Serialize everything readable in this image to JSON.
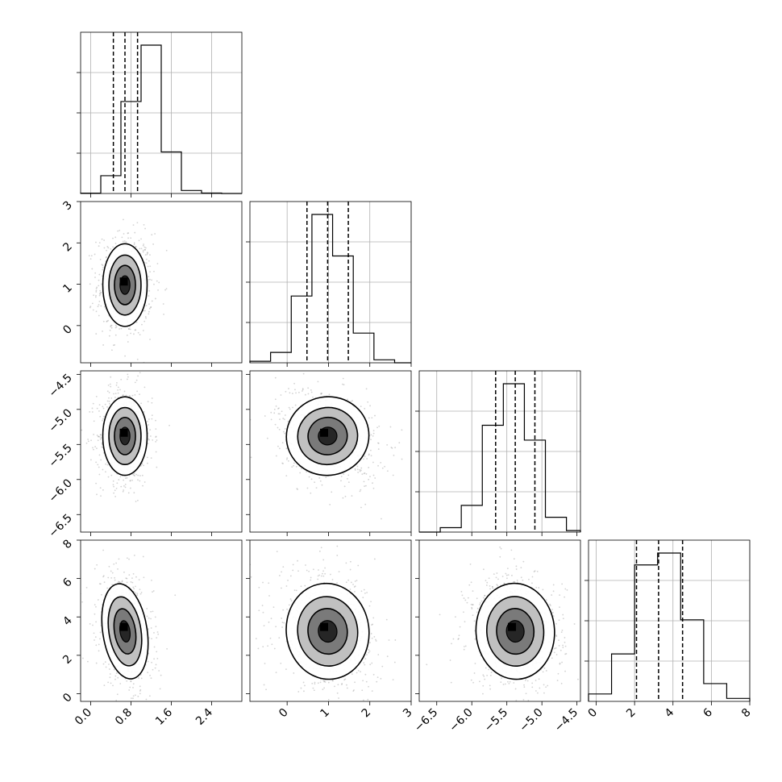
{
  "chart_data": {
    "type": "corner",
    "grid": true,
    "title": "",
    "parameters": [
      {
        "label": "",
        "range": [
          -0.2,
          3.0
        ],
        "ticks": [
          0.0,
          0.8,
          1.6,
          2.4
        ],
        "tick_labels": [
          "0.0",
          "0.8",
          "1.6",
          "2.4"
        ],
        "quantiles": [
          0.45,
          0.68,
          0.93
        ],
        "mode": 0.62,
        "center": 0.68,
        "sd": 0.22
      },
      {
        "label": "",
        "range": [
          -0.9,
          3.0
        ],
        "ticks": [
          0,
          1,
          2,
          3
        ],
        "tick_labels": [
          "0",
          "1",
          "2",
          "3"
        ],
        "quantiles": [
          0.48,
          0.98,
          1.48
        ],
        "mode": 0.98,
        "center": 0.98,
        "sd": 0.5
      },
      {
        "label": "",
        "range": [
          -6.75,
          -4.45
        ],
        "ticks": [
          -6.5,
          -6.0,
          -5.5,
          -5.0,
          -4.5
        ],
        "tick_labels": [
          "−6.5",
          "−6.0",
          "−5.5",
          "−5.0",
          "−4.5"
        ],
        "quantiles": [
          -5.66,
          -5.38,
          -5.1
        ],
        "mode": -5.35,
        "center": -5.38,
        "sd": 0.28
      },
      {
        "label": "",
        "range": [
          -0.4,
          8.0
        ],
        "ticks": [
          0,
          2,
          4,
          6,
          8
        ],
        "tick_labels": [
          "0",
          "2",
          "4",
          "6",
          "8"
        ],
        "quantiles": [
          2.1,
          3.25,
          4.5
        ],
        "mode": 3.2,
        "center": 3.25,
        "sd": 1.25
      }
    ],
    "histograms": [
      {
        "param": 0,
        "edges": [
          -0.2,
          0.2,
          0.6,
          1.0,
          1.4,
          1.8,
          2.2,
          2.6,
          3.0
        ],
        "counts": [
          0.002,
          0.12,
          0.62,
          1.0,
          0.28,
          0.02,
          0.003,
          0.0
        ]
      },
      {
        "param": 1,
        "edges": [
          -0.9,
          -0.4,
          0.1,
          0.6,
          1.1,
          1.6,
          2.1,
          2.6,
          3.0
        ],
        "counts": [
          0.01,
          0.07,
          0.45,
          1.0,
          0.72,
          0.2,
          0.02,
          0.0
        ]
      },
      {
        "param": 2,
        "edges": [
          -6.75,
          -6.45,
          -6.15,
          -5.85,
          -5.55,
          -5.25,
          -4.95,
          -4.65,
          -4.45
        ],
        "counts": [
          0.0,
          0.03,
          0.18,
          0.72,
          1.0,
          0.62,
          0.1,
          0.01
        ]
      },
      {
        "param": 3,
        "edges": [
          -0.4,
          0.8,
          2.0,
          3.2,
          4.4,
          5.6,
          6.8,
          8.0
        ],
        "counts": [
          0.05,
          0.32,
          0.92,
          1.0,
          0.55,
          0.12,
          0.02
        ]
      }
    ],
    "correlations": [
      {
        "row": 1,
        "col": 0,
        "rho": 0.0
      },
      {
        "row": 2,
        "col": 0,
        "rho": 0.0
      },
      {
        "row": 2,
        "col": 1,
        "rho": -0.3
      },
      {
        "row": 3,
        "col": 0,
        "rho": -0.25
      },
      {
        "row": 3,
        "col": 1,
        "rho": -0.2
      },
      {
        "row": 3,
        "col": 2,
        "rho": -0.1
      }
    ],
    "colors": {
      "density": "#000000",
      "points": "#808080",
      "grid": "#b0b0b0"
    }
  }
}
